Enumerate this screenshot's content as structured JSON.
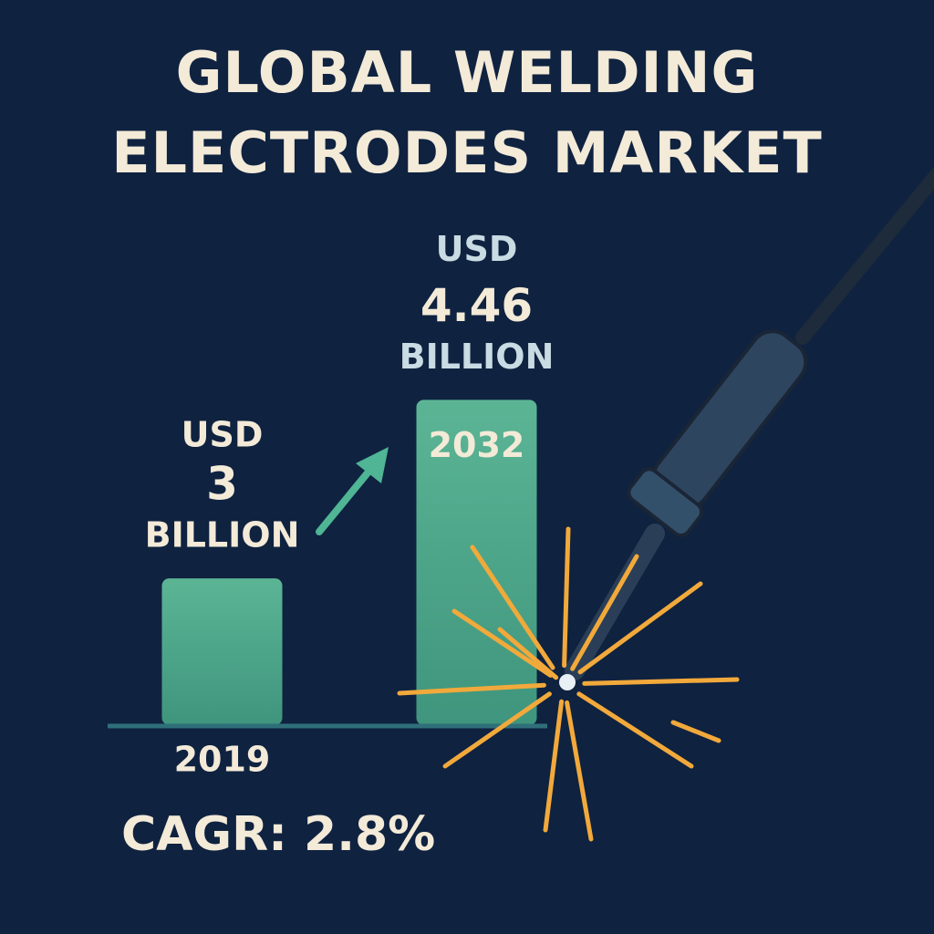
{
  "chart_data": {
    "type": "bar",
    "title": "GLOBAL WELDING ELECTRODES MARKET",
    "categories": [
      "2019",
      "2032"
    ],
    "values": [
      3,
      4.46
    ],
    "value_labels": [
      "3",
      "4.46"
    ],
    "currency": "USD",
    "unit": "BILLION",
    "annotation": "CAGR: 2.8%",
    "color": "#4fa88c",
    "ylim": [
      1.8,
      5
    ]
  }
}
